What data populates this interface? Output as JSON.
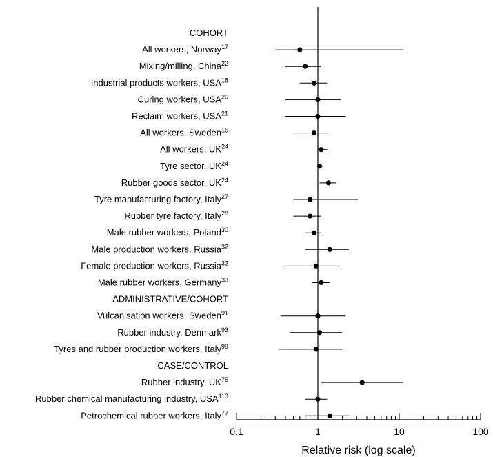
{
  "chart_data": {
    "type": "forest",
    "xlabel": "Relative risk (log scale)",
    "xscale": "log",
    "xlim": [
      0.1,
      100
    ],
    "xticks": [
      "0.1",
      "1",
      "10",
      "100"
    ],
    "reference_line": 1,
    "grid": false,
    "rows": [
      {
        "kind": "header",
        "label": "COHORT"
      },
      {
        "kind": "study",
        "label": "All workers, Norway",
        "ref": "17",
        "rr": 0.6,
        "lo": 0.3,
        "hi": 11.2
      },
      {
        "kind": "study",
        "label": "Mixing/milling, China",
        "ref": "22",
        "rr": 0.7,
        "lo": 0.4,
        "hi": 1.1
      },
      {
        "kind": "study",
        "label": "Industrial products workers, USA",
        "ref": "18",
        "rr": 0.9,
        "lo": 0.6,
        "hi": 1.3
      },
      {
        "kind": "study",
        "label": "Curing workers, USA",
        "ref": "20",
        "rr": 1.0,
        "lo": 0.4,
        "hi": 1.9
      },
      {
        "kind": "study",
        "label": "Reclaim workers, USA",
        "ref": "21",
        "rr": 1.0,
        "lo": 0.4,
        "hi": 2.2
      },
      {
        "kind": "study",
        "label": "All workers, Sweden",
        "ref": "16",
        "rr": 0.9,
        "lo": 0.5,
        "hi": 1.4
      },
      {
        "kind": "study",
        "label": "All workers, UK",
        "ref": "24",
        "rr": 1.1,
        "lo": 1.0,
        "hi": 1.3
      },
      {
        "kind": "study",
        "label": "Tyre sector, UK",
        "ref": "24",
        "rr": 1.05,
        "lo": 0.98,
        "hi": 1.15
      },
      {
        "kind": "study",
        "label": "Rubber goods sector, UK",
        "ref": "24",
        "rr": 1.35,
        "lo": 1.05,
        "hi": 1.7
      },
      {
        "kind": "study",
        "label": "Tyre manufacturing factory, Italy",
        "ref": "27",
        "rr": 0.8,
        "lo": 0.5,
        "hi": 3.1
      },
      {
        "kind": "study",
        "label": "Rubber tyre factory, Italy",
        "ref": "28",
        "rr": 0.8,
        "lo": 0.5,
        "hi": 1.1
      },
      {
        "kind": "study",
        "label": "Male rubber workers, Poland",
        "ref": "30",
        "rr": 0.9,
        "lo": 0.7,
        "hi": 1.1
      },
      {
        "kind": "study",
        "label": "Male production workers, Russia",
        "ref": "32",
        "rr": 1.4,
        "lo": 0.7,
        "hi": 2.4
      },
      {
        "kind": "study",
        "label": "Female production workers, Russia",
        "ref": "32",
        "rr": 0.95,
        "lo": 0.4,
        "hi": 1.8
      },
      {
        "kind": "study",
        "label": "Male rubber workers, Germany",
        "ref": "33",
        "rr": 1.1,
        "lo": 0.85,
        "hi": 1.4
      },
      {
        "kind": "header",
        "label": "ADMINISTRATIVE/COHORT"
      },
      {
        "kind": "study",
        "label": "Vulcanisation workers, Sweden",
        "ref": "91",
        "rr": 1.0,
        "lo": 0.35,
        "hi": 2.2
      },
      {
        "kind": "study",
        "label": "Rubber industry, Denmark",
        "ref": "93",
        "rr": 1.05,
        "lo": 0.45,
        "hi": 2.0
      },
      {
        "kind": "study",
        "label": "Tyres and rubber production workers, Italy",
        "ref": "99",
        "rr": 0.95,
        "lo": 0.33,
        "hi": 2.0
      },
      {
        "kind": "header",
        "label": "CASE/CONTROL"
      },
      {
        "kind": "study",
        "label": "Rubber industry, UK",
        "ref": "75",
        "rr": 3.5,
        "lo": 1.1,
        "hi": 11.2
      },
      {
        "kind": "study",
        "label": "Rubber chemical manufacturing industry, USA",
        "ref": "113",
        "rr": 1.0,
        "lo": 0.7,
        "hi": 1.3
      },
      {
        "kind": "study",
        "label": "Petrochemical rubber workers, Italy",
        "ref": "77",
        "rr": 1.4,
        "lo": 0.7,
        "hi": 2.5
      }
    ]
  }
}
